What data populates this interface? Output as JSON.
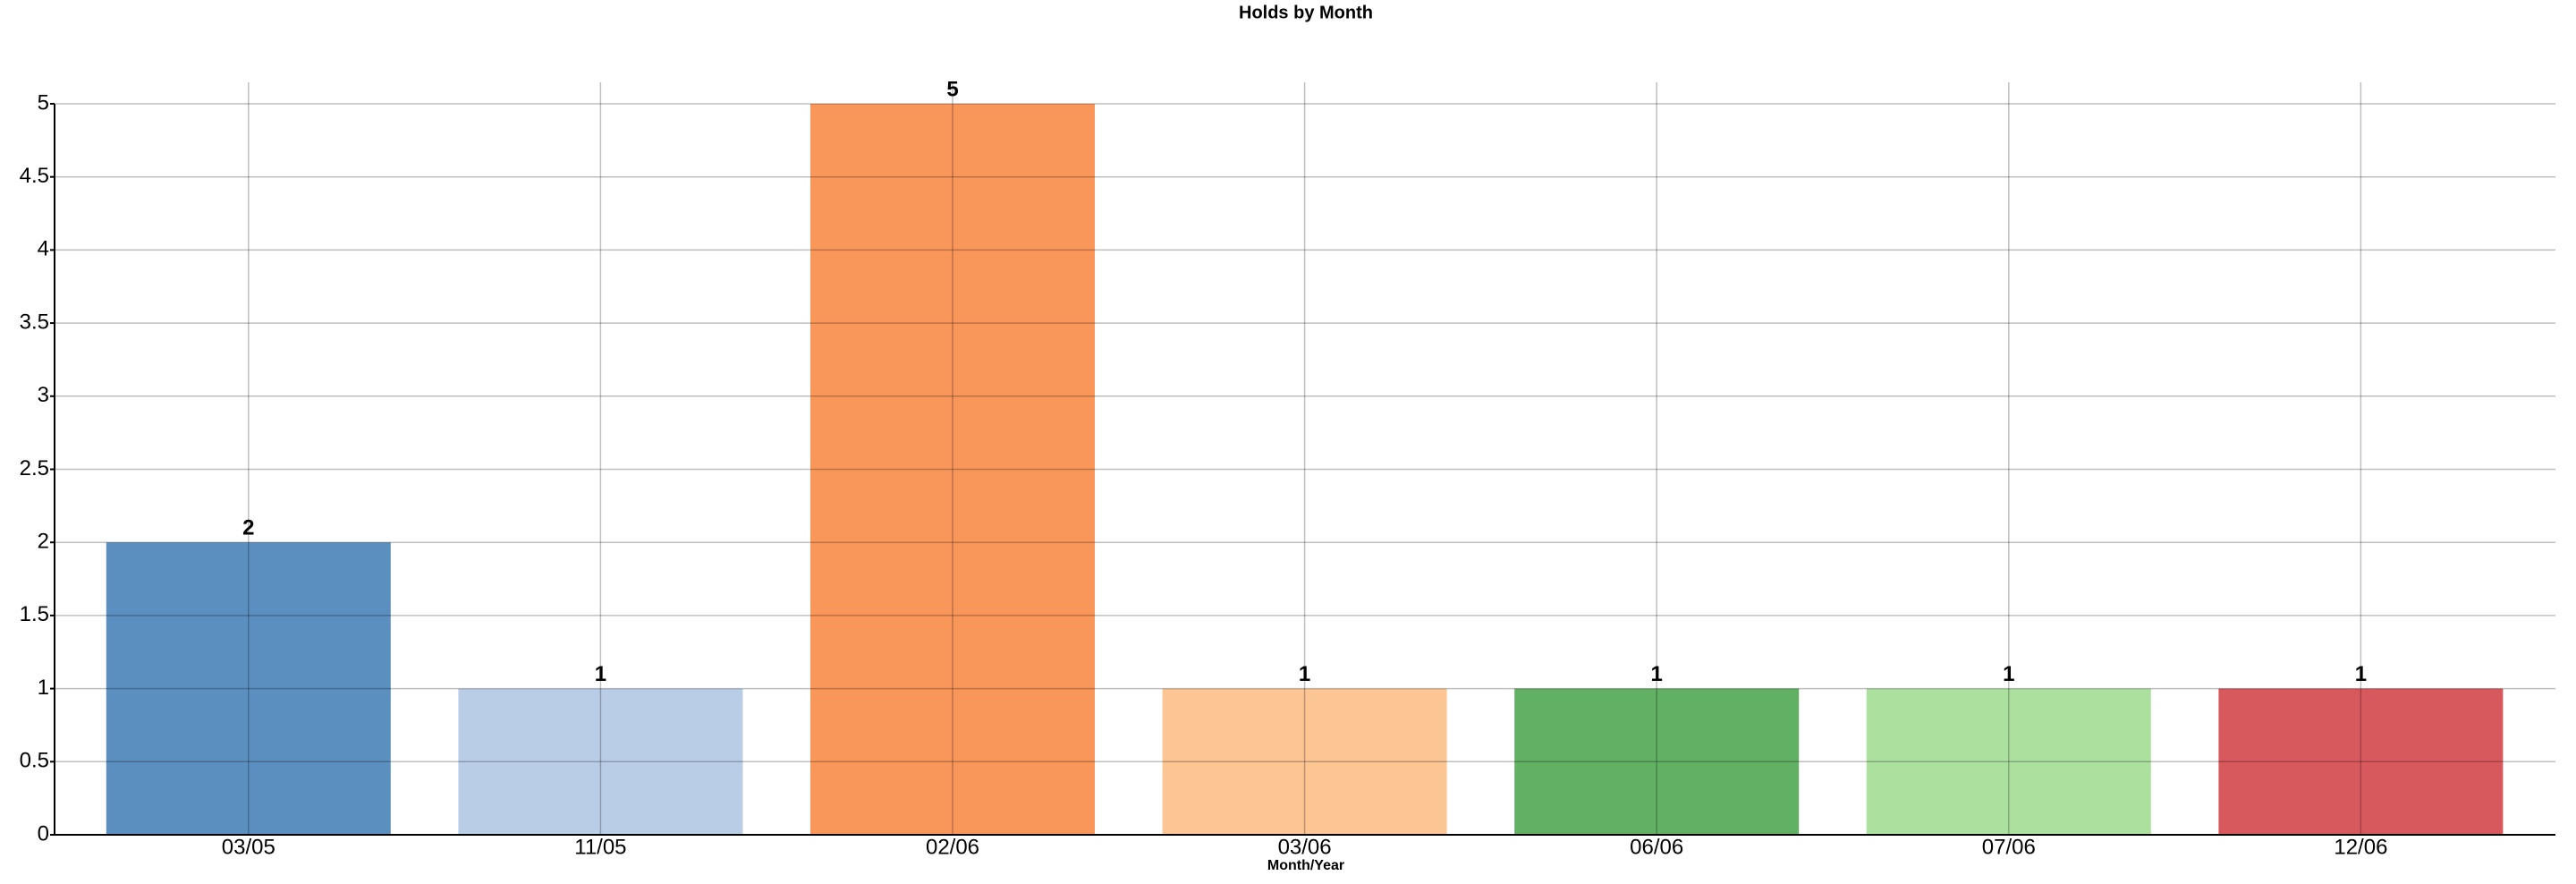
{
  "chart_data": {
    "type": "bar",
    "title": "Holds by Month",
    "x_label": "Month/Year",
    "categories": [
      "03/05",
      "11/05",
      "02/06",
      "03/06",
      "06/06",
      "07/06",
      "12/06"
    ],
    "values": [
      2,
      1,
      5,
      1,
      1,
      1,
      1
    ],
    "colors": [
      "#5b8fbf",
      "#b9cde7",
      "#f9975b",
      "#fcc594",
      "#62b064",
      "#abe09f",
      "#d8595d"
    ],
    "ylim": [
      0,
      5
    ],
    "yticks": [
      0,
      0.5,
      1,
      1.5,
      2,
      2.5,
      3,
      3.5,
      4,
      4.5,
      5
    ],
    "grid": true
  }
}
